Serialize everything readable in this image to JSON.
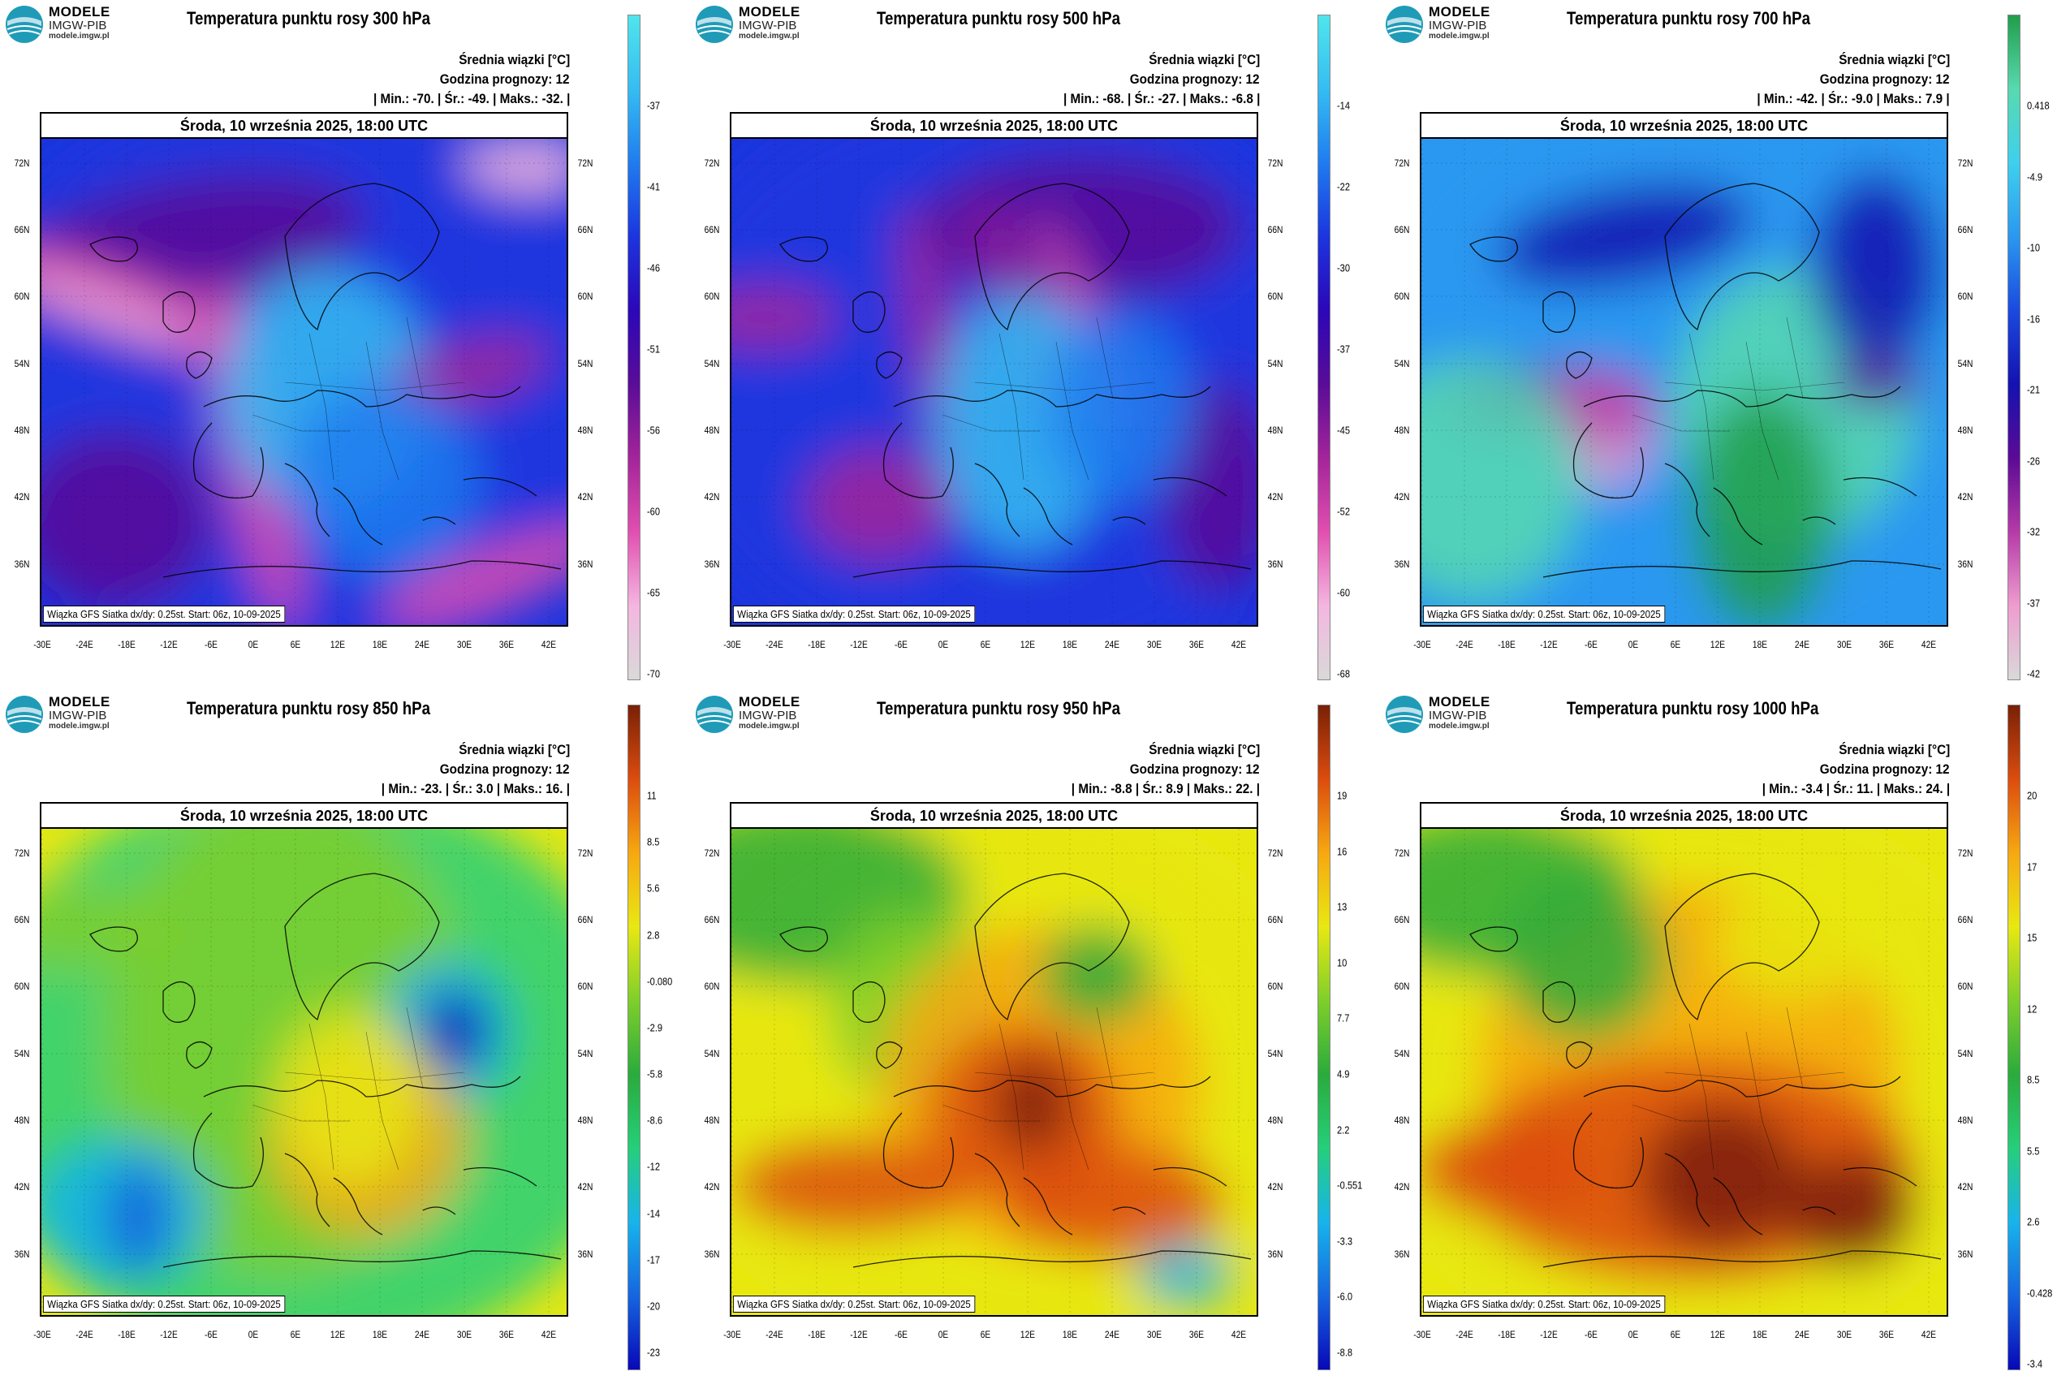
{
  "brand": {
    "name": "MODELE",
    "org": "IMGW-PIB",
    "url": "modele.imgw.pl"
  },
  "colors": {
    "cold_scale": [
      "#d9d9d9",
      "#f4b6e0",
      "#e14fb0",
      "#a4249a",
      "#5a0c98",
      "#2c07b8",
      "#1c35de",
      "#1f7cf0",
      "#35bdf2",
      "#4fe5ec"
    ],
    "warm_scale": [
      "#0808b8",
      "#1566e0",
      "#17b4ec",
      "#25cf7a",
      "#2aab3c",
      "#7fcf2a",
      "#e8e812",
      "#f7a810",
      "#dc4c0e",
      "#7a2006"
    ],
    "700_scale": [
      "#d9d9d9",
      "#ef9ccf",
      "#b63aa8",
      "#5c0a96",
      "#1412b0",
      "#1a4ae0",
      "#2a98f0",
      "#3ed0ee",
      "#58dab0",
      "#1f9e4a"
    ]
  },
  "panels": [
    {
      "title": "Temperatura punktu rosy 300 hPa",
      "mean_label": "Średnia wiązki [°C]",
      "forecast_hour": "Godzina prognozy: 12",
      "stats": "| Min.:   -70. | Śr.:   -49. | Maks.:   -32. |",
      "date": "Środa, 10 września 2025, 18:00 UTC",
      "footer": "Wiązka GFS Siatka dx/dy: 0.25st. Start: 06z, 10-09-2025",
      "scale": "cold_scale",
      "ticks": [
        "-37",
        "-41",
        "-46",
        "-51",
        "-56",
        "-60",
        "-65",
        "-70"
      ]
    },
    {
      "title": "Temperatura punktu rosy 500 hPa",
      "mean_label": "Średnia wiązki [°C]",
      "forecast_hour": "Godzina prognozy: 12",
      "stats": "| Min.:   -68. | Śr.:   -27. | Maks.:   -6.8 |",
      "date": "Środa, 10 września 2025, 18:00 UTC",
      "footer": "Wiązka GFS Siatka dx/dy: 0.25st. Start: 06z, 10-09-2025",
      "scale": "cold_scale",
      "ticks": [
        "-14",
        "-22",
        "-30",
        "-37",
        "-45",
        "-52",
        "-60",
        "-68"
      ]
    },
    {
      "title": "Temperatura punktu rosy 700 hPa",
      "mean_label": "Średnia wiązki [°C]",
      "forecast_hour": "Godzina prognozy: 12",
      "stats": "| Min.:   -42. | Śr.:   -9.0 | Maks.:   7.9 |",
      "date": "Środa, 10 września 2025, 18:00 UTC",
      "footer": "Wiązka GFS Siatka dx/dy: 0.25st. Start: 06z, 10-09-2025",
      "scale": "700_scale",
      "ticks": [
        "0.418",
        "-4.9",
        "-10",
        "-16",
        "-21",
        "-26",
        "-32",
        "-37",
        "-42"
      ]
    },
    {
      "title": "Temperatura punktu rosy 850 hPa",
      "mean_label": "Średnia wiązki [°C]",
      "forecast_hour": "Godzina prognozy: 12",
      "stats": "| Min.:   -23. | Śr.:   3.0 | Maks.:   16. |",
      "date": "Środa, 10 września 2025, 18:00 UTC",
      "footer": "Wiązka GFS Siatka dx/dy: 0.25st. Start: 06z, 10-09-2025",
      "scale": "warm_scale",
      "ticks": [
        "11",
        "8.5",
        "5.6",
        "2.8",
        "-0.080",
        "-2.9",
        "-5.8",
        "-8.6",
        "-12",
        "-14",
        "-17",
        "-20",
        "-23"
      ]
    },
    {
      "title": "Temperatura punktu rosy 950 hPa",
      "mean_label": "Średnia wiązki [°C]",
      "forecast_hour": "Godzina prognozy: 12",
      "stats": "| Min.:   -8.8 | Śr.:   8.9 | Maks.:   22. |",
      "date": "Środa, 10 września 2025, 18:00 UTC",
      "footer": "Wiązka GFS Siatka dx/dy: 0.25st. Start: 06z, 10-09-2025",
      "scale": "warm_scale",
      "ticks": [
        "19",
        "16",
        "13",
        "10",
        "7.7",
        "4.9",
        "2.2",
        "-0.551",
        "-3.3",
        "-6.0",
        "-8.8"
      ]
    },
    {
      "title": "Temperatura punktu rosy 1000 hPa",
      "mean_label": "Średnia wiązki [°C]",
      "forecast_hour": "Godzina prognozy: 12",
      "stats": "| Min.:   -3.4 | Śr.:   11. | Maks.:   24. |",
      "date": "Środa, 10 września 2025, 18:00 UTC",
      "footer": "Wiązka GFS Siatka dx/dy: 0.25st. Start: 06z, 10-09-2025",
      "scale": "warm_scale",
      "ticks": [
        "20",
        "17",
        "15",
        "12",
        "8.5",
        "5.5",
        "2.6",
        "-0.428",
        "-3.4"
      ]
    }
  ],
  "lat_labels": [
    "72N",
    "66N",
    "60N",
    "54N",
    "48N",
    "42N",
    "36N"
  ],
  "lon_labels": [
    "-30E",
    "-24E",
    "-18E",
    "-12E",
    "-6E",
    "0E",
    "6E",
    "12E",
    "18E",
    "24E",
    "30E",
    "36E",
    "42E"
  ]
}
